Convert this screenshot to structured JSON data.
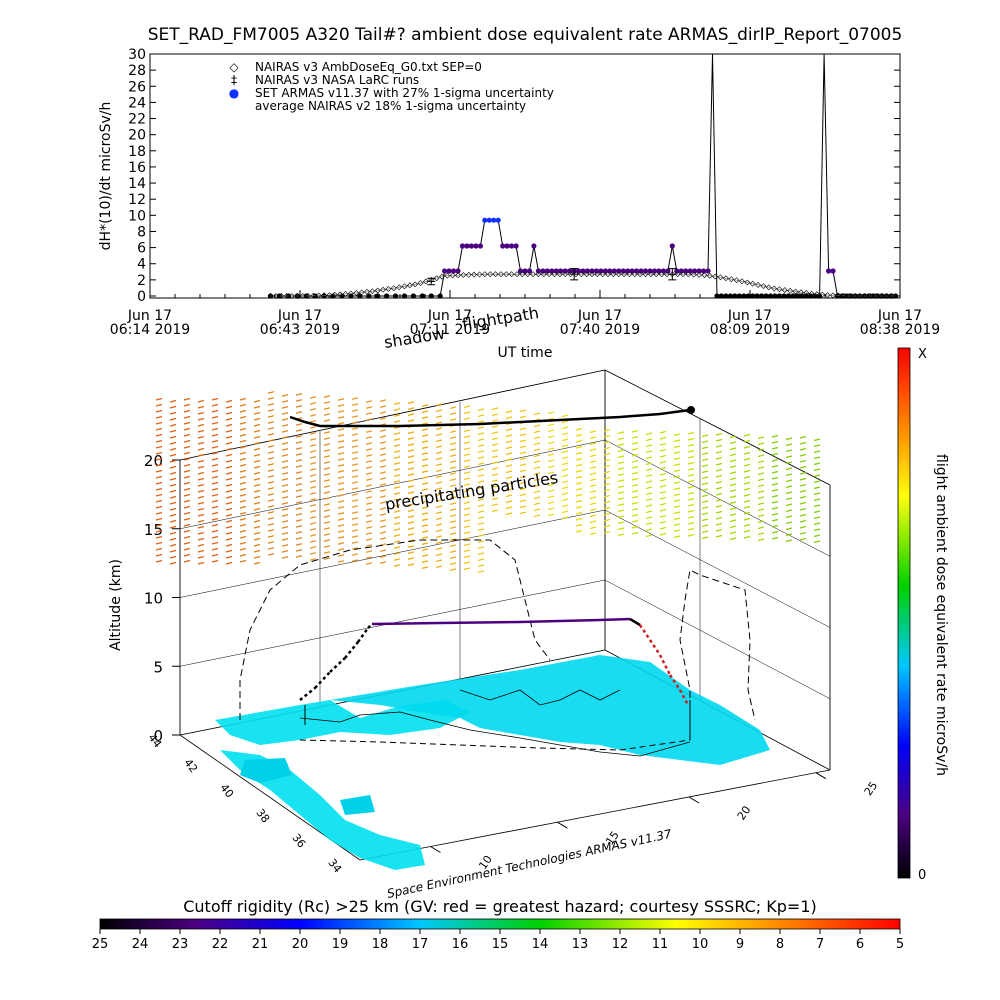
{
  "chart_data": [
    {
      "type": "scatter",
      "title": "SET_RAD_FM7005  A320 Tail#? ambient dose equivalent rate ARMAS_dirIP_Report_07005",
      "ylabel": "dH*(10)/dt microSv/h",
      "xlabel": "UT time",
      "ylim": [
        0,
        30
      ],
      "y_ticks": [
        "0",
        "2",
        "4",
        "6",
        "8",
        "10",
        "12",
        "14",
        "16",
        "18",
        "20",
        "22",
        "24",
        "26",
        "28",
        "30"
      ],
      "x_ticks": [
        {
          "line1": "Jun 17",
          "line2": "06:14 2019"
        },
        {
          "line1": "Jun 17",
          "line2": "06:43 2019"
        },
        {
          "line1": "Jun 17",
          "line2": "07:11 2019"
        },
        {
          "line1": "Jun 17",
          "line2": "07:40 2019"
        },
        {
          "line1": "Jun 17",
          "line2": "08:09 2019"
        },
        {
          "line1": "Jun 17",
          "line2": "08:38 2019"
        }
      ],
      "x_minutes_range": [
        0,
        144
      ],
      "legend": [
        {
          "symbol": "◇",
          "label": "NAIRAS v3 AmbDoseEq_G0.txt SEP=0"
        },
        {
          "symbol": "‡",
          "label": "NAIRAS v3 NASA LaRC runs"
        },
        {
          "symbol": "●",
          "label": "SET ARMAS v11.37 with 27% 1-sigma uncertainty"
        },
        {
          "symbol": "",
          "label": "average NAIRAS v2 18% 1-sigma uncertainty"
        }
      ],
      "legend_position": "top-left",
      "series": [
        {
          "name": "SET ARMAS v11.37 with 27% 1-sigma uncertainty",
          "color": "#4b0082",
          "points": [
            [
              27,
              0
            ],
            [
              29,
              0
            ],
            [
              31,
              0
            ],
            [
              33,
              0
            ],
            [
              35,
              0
            ],
            [
              37,
              0
            ],
            [
              39,
              0
            ],
            [
              41,
              0
            ],
            [
              43,
              0
            ],
            [
              45,
              0
            ],
            [
              47,
              0
            ],
            [
              49,
              0
            ],
            [
              51,
              0
            ],
            [
              53,
              0
            ],
            [
              55,
              0
            ],
            [
              57,
              0
            ],
            [
              59,
              0
            ],
            [
              61,
              0
            ],
            [
              63,
              0
            ],
            [
              65,
              0
            ],
            [
              66,
              3.1
            ],
            [
              67,
              3.1
            ],
            [
              68,
              3.1
            ],
            [
              69,
              3.1
            ],
            [
              70,
              6.2
            ],
            [
              71,
              6.2
            ],
            [
              72,
              6.2
            ],
            [
              73,
              6.2
            ],
            [
              74,
              6.2
            ],
            [
              75,
              9.4
            ],
            [
              76,
              9.4
            ],
            [
              77,
              9.4
            ],
            [
              78,
              9.4
            ],
            [
              79,
              6.2
            ],
            [
              80,
              6.2
            ],
            [
              81,
              6.2
            ],
            [
              82,
              6.2
            ],
            [
              83,
              3.1
            ],
            [
              84,
              3.1
            ],
            [
              85,
              3.1
            ],
            [
              86,
              6.2
            ],
            [
              87,
              3.1
            ],
            [
              88,
              3.1
            ],
            [
              89,
              3.1
            ],
            [
              90,
              3.1
            ],
            [
              91,
              3.1
            ],
            [
              92,
              3.1
            ],
            [
              93,
              3.1
            ],
            [
              94,
              3.1
            ],
            [
              95,
              3.1
            ],
            [
              96,
              3.1
            ],
            [
              97,
              3.1
            ],
            [
              98,
              3.1
            ],
            [
              99,
              3.1
            ],
            [
              100,
              3.1
            ],
            [
              101,
              3.1
            ],
            [
              102,
              3.1
            ],
            [
              103,
              3.1
            ],
            [
              104,
              3.1
            ],
            [
              105,
              3.1
            ],
            [
              106,
              3.1
            ],
            [
              107,
              3.1
            ],
            [
              108,
              3.1
            ],
            [
              109,
              3.1
            ],
            [
              110,
              3.1
            ],
            [
              111,
              3.1
            ],
            [
              112,
              3.1
            ],
            [
              113,
              3.1
            ],
            [
              114,
              3.1
            ],
            [
              115,
              3.1
            ],
            [
              116,
              3.1
            ],
            [
              117,
              6.2
            ],
            [
              118,
              3.1
            ],
            [
              119,
              3.1
            ],
            [
              120,
              3.1
            ],
            [
              121,
              3.1
            ],
            [
              122,
              3.1
            ],
            [
              123,
              3.1
            ],
            [
              124,
              3.1
            ],
            [
              125,
              3.1
            ],
            [
              126,
              30
            ],
            [
              127,
              0
            ],
            [
              128,
              0
            ],
            [
              129,
              0
            ],
            [
              130,
              0
            ],
            [
              131,
              0
            ],
            [
              132,
              0
            ],
            [
              133,
              0
            ],
            [
              134,
              0
            ],
            [
              135,
              0
            ],
            [
              136,
              0
            ],
            [
              137,
              0
            ],
            [
              138,
              0
            ],
            [
              139,
              0
            ],
            [
              140,
              0
            ],
            [
              141,
              0
            ],
            [
              142,
              0
            ],
            [
              143,
              0
            ],
            [
              144,
              0
            ],
            [
              145,
              0
            ],
            [
              146,
              0
            ],
            [
              147,
              0
            ],
            [
              148,
              0
            ],
            [
              149,
              0
            ],
            [
              150,
              0
            ],
            [
              151,
              30
            ],
            [
              152,
              3.1
            ],
            [
              153,
              3.1
            ],
            [
              154,
              0
            ],
            [
              155,
              0
            ],
            [
              156,
              0
            ],
            [
              157,
              0
            ],
            [
              158,
              0
            ],
            [
              159,
              0
            ],
            [
              160,
              0
            ],
            [
              161,
              0
            ],
            [
              162,
              0
            ],
            [
              163,
              0
            ],
            [
              164,
              0
            ],
            [
              165,
              0
            ],
            [
              166,
              0
            ],
            [
              167,
              0
            ]
          ]
        },
        {
          "name": "NAIRAS v3 AmbDoseEq_G0.txt SEP=0",
          "color": "#000000",
          "points": [
            [
              27,
              0
            ],
            [
              35,
              0
            ],
            [
              40,
              0.1
            ],
            [
              45,
              0.3
            ],
            [
              50,
              0.6
            ],
            [
              55,
              1.0
            ],
            [
              60,
              1.5
            ],
            [
              63,
              2.0
            ],
            [
              66,
              2.5
            ],
            [
              70,
              2.6
            ],
            [
              75,
              2.7
            ],
            [
              80,
              2.7
            ],
            [
              85,
              2.7
            ],
            [
              90,
              2.7
            ],
            [
              95,
              2.7
            ],
            [
              100,
              2.7
            ],
            [
              105,
              2.7
            ],
            [
              110,
              2.7
            ],
            [
              115,
              2.7
            ],
            [
              120,
              2.7
            ],
            [
              124,
              2.6
            ],
            [
              128,
              2.3
            ],
            [
              132,
              1.9
            ],
            [
              136,
              1.4
            ],
            [
              140,
              0.9
            ],
            [
              144,
              0.6
            ],
            [
              148,
              0.3
            ],
            [
              152,
              0.1
            ],
            [
              156,
              0.0
            ],
            [
              160,
              0.0
            ],
            [
              167,
              0.0
            ]
          ]
        }
      ],
      "errorbars": [
        {
          "x": 63,
          "y": 1.8,
          "err": 0.4
        },
        {
          "x": 95,
          "y": 2.7,
          "err": 0.7
        },
        {
          "x": 117,
          "y": 2.7,
          "err": 0.7
        }
      ]
    },
    {
      "type": "scatter",
      "ylabel": "Altitude (km)",
      "zlim": [
        0,
        20
      ],
      "z_ticks": [
        "0",
        "5",
        "10",
        "15",
        "20"
      ],
      "lat_ticks": [
        "44",
        "42",
        "40",
        "38",
        "36",
        "34"
      ],
      "lon_ticks": [
        "10",
        "15",
        "20",
        "25"
      ],
      "annotations": [
        "shadow",
        "flightpath",
        "precipitating particles"
      ],
      "credit": "Space Environment Technologies ARMAS v11.37",
      "colorbar": {
        "label": "flight ambient dose equivalent rate microSv/h",
        "top_label": "X",
        "bottom_label": "0"
      },
      "flight_altitude_km": 7.5
    },
    {
      "type": "heatmap",
      "title": "Cutoff rigidity (Rc) >25 km (GV: red = greatest hazard; courtesy SSSRC; Kp=1)",
      "tick_labels": [
        "25",
        "24",
        "23",
        "22",
        "21",
        "20",
        "19",
        "18",
        "17",
        "16",
        "15",
        "14",
        "13",
        "12",
        "11",
        "10",
        "9",
        "8",
        "7",
        "6",
        "5"
      ],
      "range": [
        25,
        5
      ]
    }
  ]
}
